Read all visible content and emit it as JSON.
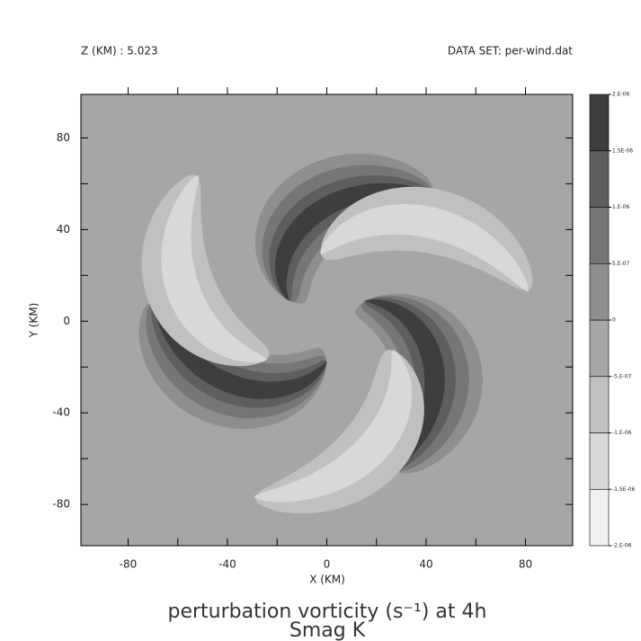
{
  "chart_data": {
    "type": "contour",
    "header_left": "Z (KM) : 5.023",
    "header_right": "DATA SET: per-wind.dat",
    "title": "perturbation vorticity (s⁻¹) at 4h",
    "subtitle": "Smag K",
    "xlabel": "X (KM)",
    "ylabel": "Y (KM)",
    "xlim": [
      -99,
      99
    ],
    "ylim": [
      -98,
      99
    ],
    "xticks": [
      -80,
      -40,
      0,
      40,
      80
    ],
    "yticks": [
      -80,
      -40,
      0,
      40,
      80
    ],
    "xminor_ticks": [
      -60,
      -20,
      20,
      60
    ],
    "yminor_ticks": [
      -60,
      -20,
      20,
      60
    ],
    "levels": [
      {
        "value": -2e-06,
        "label": "-2.E-06"
      },
      {
        "value": -1.5e-06,
        "label": "-1.5E-06"
      },
      {
        "value": -1e-06,
        "label": "-1.E-06"
      },
      {
        "value": -5e-07,
        "label": "-5.E-07"
      },
      0,
      {
        "value": 5e-07,
        "label": "5.E-07"
      },
      {
        "value": 1e-06,
        "label": "1.E-06"
      },
      {
        "value": 1.5e-06,
        "label": "1.5E-06"
      },
      {
        "value": 2e-06,
        "label": "2.E-06"
      }
    ],
    "colors": [
      "#f0f0f0",
      "#d8d8d8",
      "#c0c0c0",
      "#a6a6a6",
      "#8e8e8e",
      "#767676",
      "#5e5e5e",
      "#3e3e3e"
    ]
  }
}
